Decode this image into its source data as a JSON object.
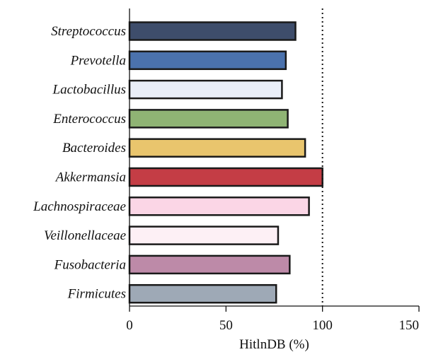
{
  "chart_data": {
    "type": "bar",
    "orientation": "horizontal",
    "categories": [
      "Streptococcus",
      "Prevotella",
      "Lactobacillus",
      "Enterococcus",
      "Bacteroides",
      "Akkermansia",
      "Lachnospiraceae",
      "Veillonellaceae",
      "Fusobacteria",
      "Firmicutes"
    ],
    "values": [
      86,
      81,
      79,
      82,
      91,
      100,
      93,
      77,
      83,
      76
    ],
    "colors": [
      "#3e4d6b",
      "#4b72ad",
      "#e9eef8",
      "#8fb474",
      "#e9c56d",
      "#c43d45",
      "#fbd6e6",
      "#fdf0f5",
      "#bd8aa8",
      "#9ea9b6"
    ],
    "xlabel": "HitlnDB (%)",
    "ylabel": "",
    "title": "",
    "xlim": [
      0,
      150
    ],
    "xticks": [
      0,
      50,
      100,
      150
    ],
    "reference_line": {
      "x": 100,
      "style": "dotted"
    },
    "grid": false,
    "legend": "none"
  }
}
